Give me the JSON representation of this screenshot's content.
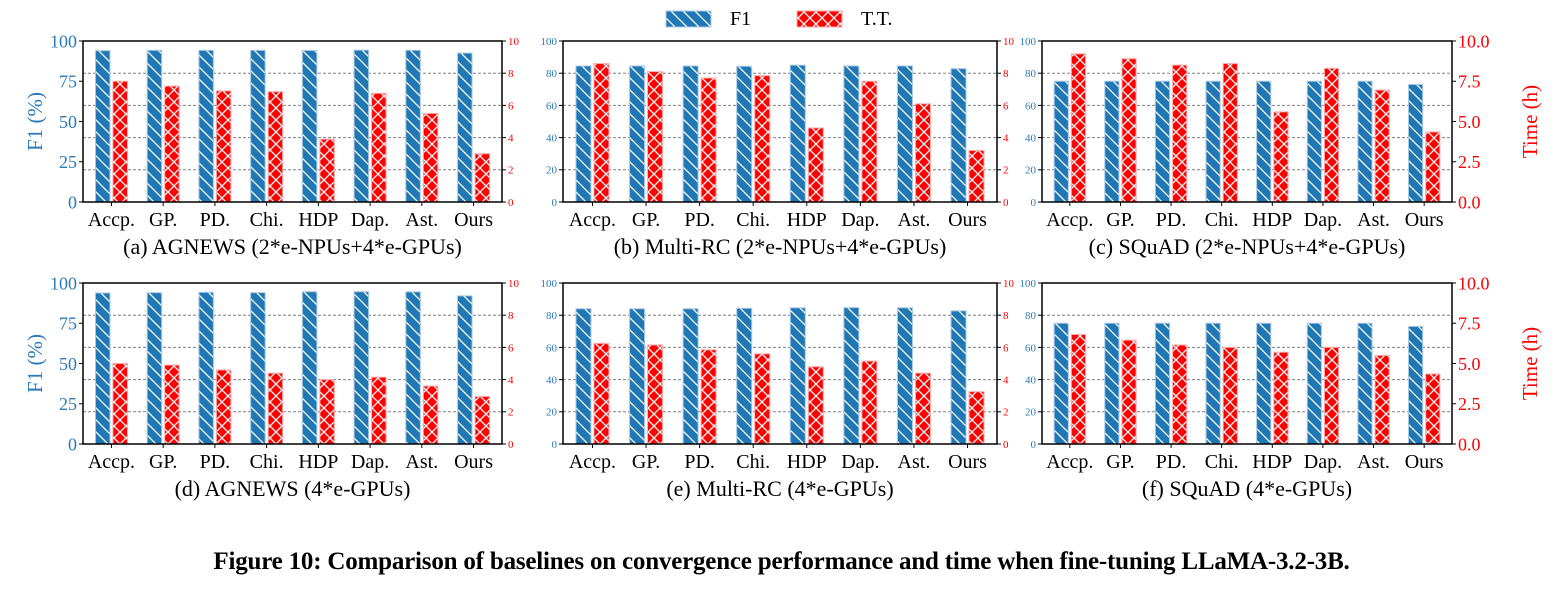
{
  "legend": {
    "position": "top-center",
    "entries": [
      {
        "name": "F1",
        "color": "#1f77b4",
        "hatch": "diagonal"
      },
      {
        "name": "T.T.",
        "color": "#ff0000",
        "hatch": "cross"
      }
    ]
  },
  "colors": {
    "f1": "#1f77b4",
    "tt": "#ff0000",
    "left_axis_text": "#2a7ab9",
    "right_axis_text": "#ff0000",
    "grid": "#808080"
  },
  "caption": "Figure 10: Comparison of baselines on convergence performance and time when fine-tuning LLaMA-3.2-3B.",
  "chart_data": [
    {
      "type": "bar",
      "title": "(a) AGNEWS (2*e-NPUs+4*e-GPUs)",
      "categories": [
        "Accp.",
        "GP.",
        "PD.",
        "Chi.",
        "HDP",
        "Dap.",
        "Ast.",
        "Ours"
      ],
      "series": [
        {
          "name": "F1",
          "axis": "left",
          "values": [
            94,
            94.2,
            94.2,
            94.2,
            94.1,
            94.3,
            94.2,
            92.5
          ]
        },
        {
          "name": "T.T.",
          "axis": "right",
          "values": [
            7.5,
            7.2,
            6.9,
            6.85,
            3.9,
            6.75,
            5.5,
            3.0
          ]
        }
      ],
      "ylabel": "F1 (%)",
      "ylabel_right": "",
      "ylim": [
        0,
        100
      ],
      "ylim_right": [
        0,
        10
      ],
      "yticks": [
        "0",
        "25",
        "50",
        "75",
        "100"
      ],
      "yticks_right": [
        "0",
        "2",
        "4",
        "6",
        "8",
        "10"
      ],
      "grid": true
    },
    {
      "type": "bar",
      "title": "(b) Multi-RC (2*e-NPUs+4*e-GPUs)",
      "categories": [
        "Accp.",
        "GP.",
        "PD.",
        "Chi.",
        "HDP",
        "Dap.",
        "Ast.",
        "Ours"
      ],
      "series": [
        {
          "name": "F1",
          "axis": "left",
          "values": [
            84.5,
            84.5,
            84.5,
            84.3,
            85,
            84.5,
            84.5,
            82.8
          ]
        },
        {
          "name": "T.T.",
          "axis": "right",
          "values": [
            8.6,
            8.1,
            7.7,
            7.85,
            4.6,
            7.5,
            6.1,
            3.2
          ]
        }
      ],
      "ylabel": "",
      "ylabel_right": "",
      "ylim": [
        0,
        100
      ],
      "ylim_right": [
        0,
        10
      ],
      "yticks": [
        "0",
        "20",
        "40",
        "60",
        "80",
        "100"
      ],
      "yticks_right": [
        "0",
        "2",
        "4",
        "6",
        "8",
        "10"
      ],
      "grid": true
    },
    {
      "type": "bar",
      "title": "(c) SQuAD (2*e-NPUs+4*e-GPUs)",
      "categories": [
        "Accp.",
        "GP.",
        "PD.",
        "Chi.",
        "HDP",
        "Dap.",
        "Ast.",
        "Ours"
      ],
      "series": [
        {
          "name": "F1",
          "axis": "left",
          "values": [
            75,
            75,
            75,
            75,
            75,
            75,
            75,
            73
          ]
        },
        {
          "name": "T.T.",
          "axis": "right",
          "values": [
            9.2,
            8.9,
            8.5,
            8.6,
            5.6,
            8.3,
            6.95,
            4.35
          ]
        }
      ],
      "ylabel": "",
      "ylabel_right": "Time (h)",
      "ylim": [
        0,
        100
      ],
      "ylim_right": [
        0,
        10
      ],
      "yticks": [
        "0",
        "20",
        "40",
        "60",
        "80",
        "100"
      ],
      "yticks_right": [
        "0.0",
        "2.5",
        "5.0",
        "7.5",
        "10.0"
      ],
      "grid": true
    },
    {
      "type": "bar",
      "title": "(d) AGNEWS (4*e-GPUs)",
      "categories": [
        "Accp.",
        "GP.",
        "PD.",
        "Chi.",
        "HDP",
        "Dap.",
        "Ast.",
        "Ours"
      ],
      "series": [
        {
          "name": "F1",
          "axis": "left",
          "values": [
            93.8,
            94,
            94.2,
            94,
            94.6,
            94.6,
            94.5,
            92
          ]
        },
        {
          "name": "T.T.",
          "axis": "right",
          "values": [
            5.0,
            4.9,
            4.6,
            4.4,
            4.0,
            4.15,
            3.6,
            2.95
          ]
        }
      ],
      "ylabel": "F1 (%)",
      "ylabel_right": "",
      "ylim": [
        0,
        100
      ],
      "ylim_right": [
        0,
        10
      ],
      "yticks": [
        "0",
        "25",
        "50",
        "75",
        "100"
      ],
      "yticks_right": [
        "0",
        "2",
        "4",
        "6",
        "8",
        "10"
      ],
      "grid": true
    },
    {
      "type": "bar",
      "title": "(e) Multi-RC (4*e-GPUs)",
      "categories": [
        "Accp.",
        "GP.",
        "PD.",
        "Chi.",
        "HDP",
        "Dap.",
        "Ast.",
        "Ours"
      ],
      "series": [
        {
          "name": "F1",
          "axis": "left",
          "values": [
            84,
            84,
            84,
            84.3,
            84.6,
            84.7,
            84.6,
            82.7
          ]
        },
        {
          "name": "T.T.",
          "axis": "right",
          "values": [
            6.25,
            6.15,
            5.85,
            5.6,
            4.8,
            5.15,
            4.4,
            3.25
          ]
        }
      ],
      "ylabel": "",
      "ylabel_right": "",
      "ylim": [
        0,
        100
      ],
      "ylim_right": [
        0,
        10
      ],
      "yticks": [
        "0",
        "20",
        "40",
        "60",
        "80",
        "100"
      ],
      "yticks_right": [
        "0",
        "2",
        "4",
        "6",
        "8",
        "10"
      ],
      "grid": true
    },
    {
      "type": "bar",
      "title": "(f) SQuAD (4*e-GPUs)",
      "categories": [
        "Accp.",
        "GP.",
        "PD.",
        "Chi.",
        "HDP",
        "Dap.",
        "Ast.",
        "Ours"
      ],
      "series": [
        {
          "name": "F1",
          "axis": "left",
          "values": [
            75,
            75,
            75,
            75,
            75,
            75,
            75,
            73
          ]
        },
        {
          "name": "T.T.",
          "axis": "right",
          "values": [
            6.8,
            6.45,
            6.15,
            6.0,
            5.7,
            6.0,
            5.5,
            4.35
          ]
        }
      ],
      "ylabel": "",
      "ylabel_right": "Time (h)",
      "ylim": [
        0,
        100
      ],
      "ylim_right": [
        0,
        10
      ],
      "yticks": [
        "0",
        "20",
        "40",
        "60",
        "80",
        "100"
      ],
      "yticks_right": [
        "0.0",
        "2.5",
        "5.0",
        "7.5",
        "10.0"
      ],
      "grid": true
    }
  ]
}
